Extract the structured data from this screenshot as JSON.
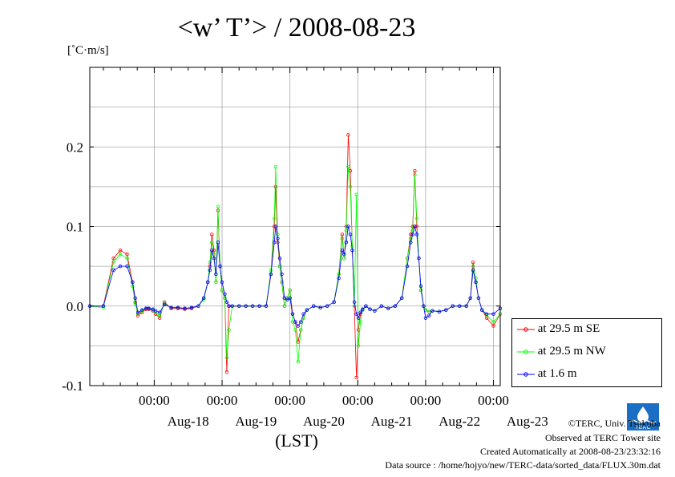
{
  "title": "<w’ T’> / 2008-08-23",
  "unit_label": "[˚C·m/s]",
  "xlabel": "(LST)",
  "footer": {
    "credit": "©TERC, Univ. Tsukuba",
    "site": "Observed at TERC Tower site",
    "created": "Created Automatically at 2008-08-23/23:32:16",
    "source": "Data source : /home/hojyo/new/TERC-data/sorted_data/FLUX.30m.dat"
  },
  "logo_text": "TERC",
  "chart_data": {
    "type": "line",
    "title": "<w’ T’> / 2008-08-23",
    "ylabel": "[˚C·m/s]",
    "xlabel": "(LST)",
    "x_unit": "days from 2008-08-18 00:00 LST",
    "xlim": [
      -0.95,
      5.1
    ],
    "ylim": [
      -0.1,
      0.3
    ],
    "yticks": [
      -0.1,
      0.0,
      0.1,
      0.2
    ],
    "ytick_labels": [
      "-0.1",
      "0.0",
      "0.1",
      "0.2"
    ],
    "xticks_time": [
      0,
      1,
      2,
      3,
      4,
      5
    ],
    "xtick_time_labels": [
      "00:00",
      "00:00",
      "00:00",
      "00:00",
      "00:00",
      "00:00"
    ],
    "xtick_date_positions": [
      0.5,
      1.5,
      2.5,
      3.5,
      4.5,
      5.5
    ],
    "xtick_date_labels": [
      "Aug-18",
      "Aug-19",
      "Aug-20",
      "Aug-21",
      "Aug-22",
      "Aug-23"
    ],
    "grid": true,
    "legend_position": "right",
    "series": [
      {
        "name": "at 29.5 m SE",
        "color": "#ff0000",
        "x": [
          -0.95,
          -0.75,
          -0.6,
          -0.5,
          -0.4,
          -0.32,
          -0.28,
          -0.24,
          -0.18,
          -0.12,
          -0.08,
          -0.02,
          0.02,
          0.08,
          0.15,
          0.25,
          0.35,
          0.45,
          0.55,
          0.65,
          0.73,
          0.79,
          0.82,
          0.85,
          0.88,
          0.91,
          0.94,
          0.97,
          1.0,
          1.04,
          1.07,
          1.1,
          1.15,
          1.25,
          1.35,
          1.45,
          1.55,
          1.65,
          1.72,
          1.77,
          1.79,
          1.82,
          1.85,
          1.88,
          1.92,
          1.96,
          2.0,
          2.04,
          2.08,
          2.12,
          2.16,
          2.2,
          2.25,
          2.35,
          2.45,
          2.55,
          2.65,
          2.72,
          2.77,
          2.8,
          2.83,
          2.86,
          2.89,
          2.92,
          2.95,
          2.98,
          3.01,
          3.04,
          3.07,
          3.12,
          3.18,
          3.25,
          3.35,
          3.45,
          3.55,
          3.65,
          3.73,
          3.78,
          3.81,
          3.84,
          3.87,
          3.9,
          3.93,
          3.97,
          4.0,
          4.05,
          4.1,
          4.2,
          4.3,
          4.4,
          4.5,
          4.6,
          4.66,
          4.7,
          4.74,
          4.78,
          4.83,
          4.9,
          5.0,
          5.1
        ],
        "y": [
          0.0,
          0.0,
          0.06,
          0.07,
          0.065,
          0.03,
          0.005,
          -0.012,
          -0.008,
          -0.004,
          -0.004,
          -0.006,
          -0.01,
          -0.015,
          0.005,
          -0.003,
          -0.003,
          -0.004,
          -0.003,
          0.0,
          0.01,
          0.03,
          0.05,
          0.09,
          0.07,
          0.03,
          0.12,
          0.05,
          0.02,
          0.01,
          -0.083,
          0.0,
          0.0,
          0.0,
          0.0,
          0.0,
          0.0,
          0.0,
          0.04,
          0.1,
          0.15,
          0.08,
          0.05,
          0.03,
          0.0,
          0.01,
          0.02,
          -0.01,
          -0.02,
          -0.045,
          -0.03,
          -0.015,
          -0.005,
          0.0,
          -0.002,
          0.0,
          0.005,
          0.04,
          0.09,
          0.06,
          0.1,
          0.215,
          0.17,
          0.07,
          0.0,
          -0.09,
          -0.03,
          -0.01,
          -0.005,
          0.0,
          -0.004,
          -0.006,
          0.0,
          -0.003,
          0.0,
          0.01,
          0.06,
          0.09,
          0.1,
          0.17,
          0.1,
          0.06,
          0.02,
          0.0,
          -0.005,
          -0.007,
          -0.006,
          -0.007,
          -0.005,
          0.0,
          0.0,
          0.0,
          0.01,
          0.055,
          0.03,
          0.01,
          -0.005,
          -0.015,
          -0.025,
          -0.01
        ]
      },
      {
        "name": "at 29.5 m NW",
        "color": "#00ff00",
        "x": [
          -0.95,
          -0.75,
          -0.6,
          -0.5,
          -0.4,
          -0.32,
          -0.28,
          -0.24,
          -0.18,
          -0.12,
          -0.08,
          -0.02,
          0.02,
          0.08,
          0.15,
          0.25,
          0.35,
          0.45,
          0.55,
          0.65,
          0.73,
          0.79,
          0.82,
          0.85,
          0.88,
          0.91,
          0.94,
          0.97,
          1.0,
          1.04,
          1.07,
          1.1,
          1.15,
          1.25,
          1.35,
          1.45,
          1.55,
          1.65,
          1.72,
          1.77,
          1.79,
          1.82,
          1.85,
          1.88,
          1.92,
          1.96,
          2.0,
          2.04,
          2.08,
          2.12,
          2.16,
          2.2,
          2.25,
          2.35,
          2.45,
          2.55,
          2.65,
          2.72,
          2.77,
          2.8,
          2.83,
          2.86,
          2.89,
          2.92,
          2.95,
          2.98,
          3.01,
          3.04,
          3.07,
          3.12,
          3.18,
          3.25,
          3.35,
          3.45,
          3.55,
          3.65,
          3.73,
          3.78,
          3.81,
          3.84,
          3.87,
          3.9,
          3.93,
          3.97,
          4.0,
          4.05,
          4.1,
          4.2,
          4.3,
          4.4,
          4.5,
          4.6,
          4.66,
          4.7,
          4.74,
          4.78,
          4.83,
          4.9,
          5.0,
          5.1
        ],
        "y": [
          0.0,
          -0.002,
          0.055,
          0.065,
          0.06,
          0.025,
          0.003,
          -0.01,
          -0.006,
          -0.003,
          -0.003,
          -0.005,
          -0.008,
          -0.012,
          0.003,
          -0.002,
          -0.002,
          -0.003,
          -0.002,
          0.0,
          0.008,
          0.03,
          0.055,
          0.08,
          0.065,
          0.03,
          0.125,
          0.05,
          0.02,
          0.01,
          -0.065,
          -0.03,
          0.0,
          0.0,
          0.0,
          0.0,
          0.0,
          0.0,
          0.045,
          0.11,
          0.175,
          0.09,
          0.05,
          0.03,
          0.0,
          0.01,
          0.02,
          -0.02,
          -0.03,
          -0.07,
          -0.03,
          -0.015,
          -0.005,
          0.0,
          -0.002,
          0.0,
          0.005,
          0.04,
          0.085,
          0.06,
          0.095,
          0.175,
          0.15,
          0.075,
          0.0,
          0.14,
          -0.05,
          -0.02,
          -0.005,
          0.0,
          -0.004,
          -0.006,
          0.0,
          -0.003,
          0.0,
          0.01,
          0.06,
          0.085,
          0.095,
          0.165,
          0.11,
          0.06,
          0.02,
          0.0,
          -0.005,
          -0.007,
          -0.006,
          -0.007,
          -0.005,
          0.0,
          0.0,
          0.0,
          0.01,
          0.05,
          0.035,
          0.01,
          -0.005,
          -0.012,
          -0.02,
          -0.01
        ]
      },
      {
        "name": "at 1.6 m",
        "color": "#0000ff",
        "x": [
          -0.95,
          -0.75,
          -0.6,
          -0.5,
          -0.4,
          -0.32,
          -0.28,
          -0.24,
          -0.18,
          -0.12,
          -0.08,
          -0.02,
          0.02,
          0.08,
          0.15,
          0.25,
          0.35,
          0.45,
          0.55,
          0.65,
          0.73,
          0.79,
          0.82,
          0.85,
          0.88,
          0.91,
          0.94,
          0.97,
          1.0,
          1.04,
          1.07,
          1.1,
          1.15,
          1.25,
          1.35,
          1.45,
          1.55,
          1.65,
          1.72,
          1.77,
          1.79,
          1.82,
          1.85,
          1.88,
          1.92,
          1.96,
          2.0,
          2.04,
          2.08,
          2.12,
          2.16,
          2.2,
          2.25,
          2.35,
          2.45,
          2.55,
          2.65,
          2.72,
          2.77,
          2.8,
          2.83,
          2.86,
          2.89,
          2.92,
          2.95,
          2.98,
          3.01,
          3.04,
          3.07,
          3.12,
          3.18,
          3.25,
          3.35,
          3.45,
          3.55,
          3.65,
          3.73,
          3.78,
          3.81,
          3.84,
          3.87,
          3.9,
          3.93,
          3.97,
          4.0,
          4.05,
          4.1,
          4.2,
          4.3,
          4.4,
          4.5,
          4.6,
          4.66,
          4.7,
          4.74,
          4.78,
          4.83,
          4.9,
          5.0,
          5.1
        ],
        "y": [
          0.0,
          0.0,
          0.045,
          0.05,
          0.05,
          0.03,
          0.01,
          -0.008,
          -0.005,
          -0.003,
          -0.003,
          -0.004,
          -0.006,
          -0.008,
          0.002,
          -0.002,
          -0.002,
          -0.003,
          -0.002,
          0.0,
          0.01,
          0.03,
          0.045,
          0.07,
          0.06,
          0.04,
          0.08,
          0.05,
          0.03,
          0.015,
          0.005,
          0.0,
          0.0,
          0.0,
          0.0,
          0.0,
          0.0,
          0.0,
          0.04,
          0.08,
          0.1,
          0.085,
          0.06,
          0.04,
          0.01,
          0.008,
          0.01,
          -0.01,
          -0.02,
          -0.025,
          -0.02,
          -0.01,
          -0.005,
          0.0,
          -0.002,
          0.0,
          0.005,
          0.035,
          0.07,
          0.065,
          0.08,
          0.1,
          0.09,
          0.07,
          0.005,
          -0.01,
          -0.015,
          -0.008,
          -0.004,
          0.0,
          -0.004,
          -0.006,
          0.0,
          -0.003,
          0.0,
          0.01,
          0.05,
          0.08,
          0.09,
          0.1,
          0.09,
          0.06,
          0.025,
          0.0,
          -0.015,
          -0.012,
          -0.006,
          -0.007,
          -0.005,
          0.0,
          0.0,
          0.0,
          0.01,
          0.045,
          0.03,
          0.01,
          -0.005,
          -0.01,
          -0.01,
          -0.003
        ]
      }
    ]
  }
}
